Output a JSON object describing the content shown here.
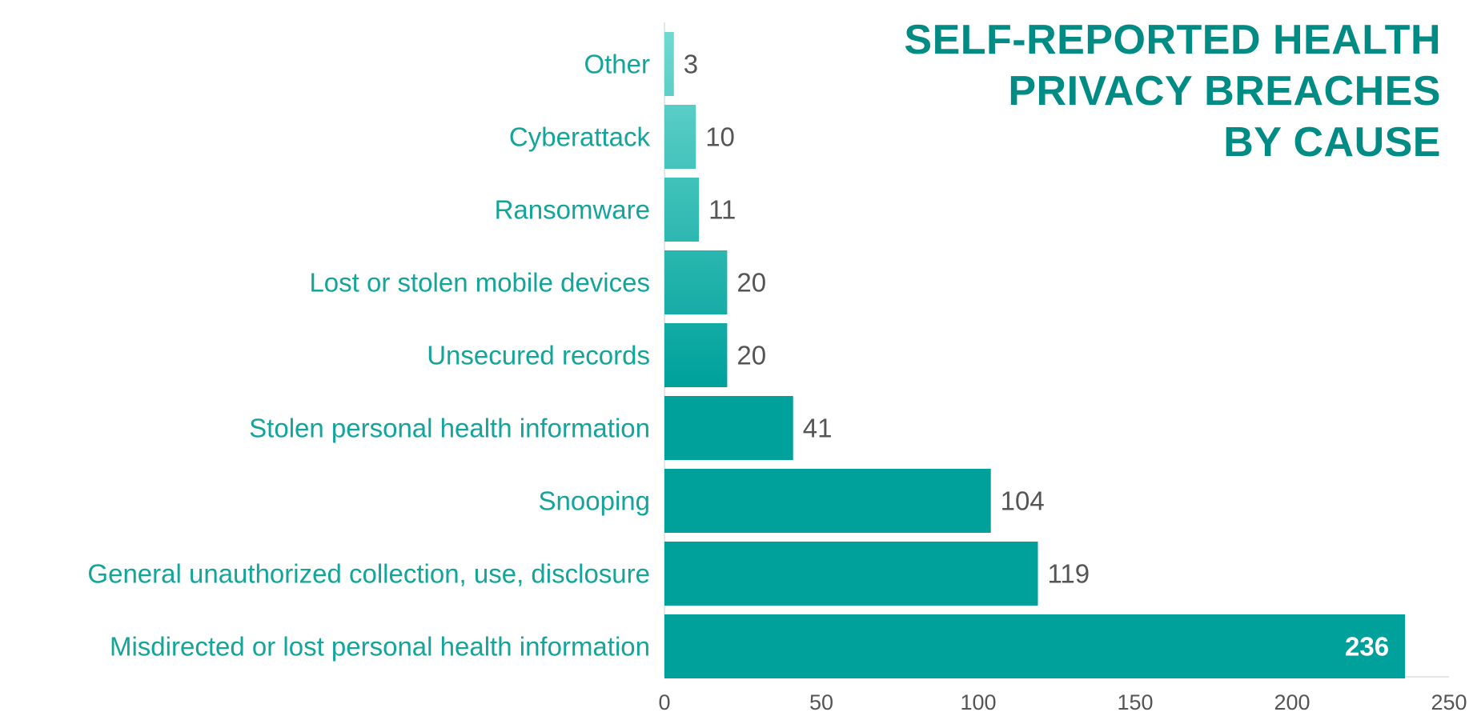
{
  "chart_data": {
    "type": "bar",
    "orientation": "horizontal",
    "title_lines": [
      "SELF-REPORTED HEALTH",
      "PRIVACY BREACHES",
      "BY CAUSE"
    ],
    "xlabel": "",
    "ylabel": "",
    "xlim": [
      0,
      250
    ],
    "x_ticks": [
      0,
      50,
      100,
      150,
      200,
      250
    ],
    "grid": false,
    "legend": "none",
    "categories": [
      "Other",
      "Cyberattack",
      "Ransomware",
      "Lost or stolen mobile devices",
      "Unsecured records",
      "Stolen personal health information",
      "Snooping",
      "General unauthorized collection, use, disclosure",
      "Misdirected or lost personal health information"
    ],
    "values": [
      3,
      10,
      11,
      20,
      20,
      41,
      104,
      119,
      236
    ],
    "colors": {
      "label": "#13a49a",
      "title": "#008b84",
      "bar_light": "#6fd9d1",
      "bar_dark": "#00a19b",
      "value": "#555555",
      "axis": "#e6e6e6"
    }
  }
}
